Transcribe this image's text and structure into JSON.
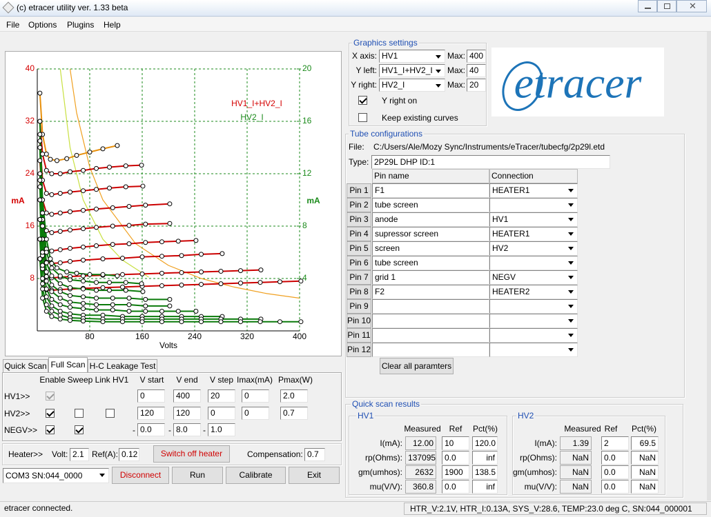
{
  "window": {
    "title": "(c) etracer utility ver. 1.33 beta"
  },
  "menu": [
    "File",
    "Options",
    "Plugins",
    "Help"
  ],
  "chart_data": {
    "type": "line",
    "xlabel": "Volts",
    "ylabel": "mA",
    "y2label": "mA",
    "xlim": [
      0,
      400
    ],
    "xticks": [
      80,
      160,
      240,
      320,
      400
    ],
    "ylim": [
      0,
      40
    ],
    "yticks": [
      8,
      16,
      24,
      32,
      40
    ],
    "y2lim": [
      0,
      20
    ],
    "y2ticks": [
      4,
      8,
      12,
      16,
      20
    ],
    "grid": true,
    "legend": [
      {
        "label": "HV1_I+HV2_I",
        "color": "#d40000"
      },
      {
        "label": "HV2_I",
        "color": "#1a8a1a"
      }
    ],
    "series": [
      {
        "color": "#f0a020",
        "markers": false,
        "x": [
          50,
          60,
          80,
          100,
          150,
          200,
          250,
          300,
          350,
          400
        ],
        "values": [
          40,
          33.3,
          25,
          20,
          13.3,
          10,
          8,
          6.7,
          5.7,
          5
        ]
      },
      {
        "color": "#c8e040",
        "markers": false,
        "axis": "y2",
        "x": [
          35,
          50,
          70,
          100,
          130,
          170
        ],
        "values": [
          20,
          14,
          10,
          7,
          5.4,
          4.1
        ]
      },
      {
        "color": "#e8900c",
        "markers": true,
        "x": [
          4,
          8,
          14,
          20,
          30,
          45,
          60,
          80,
          100,
          122
        ],
        "values": [
          36.3,
          30,
          27,
          26.2,
          26,
          26.3,
          26.8,
          27.3,
          27.8,
          28.3
        ]
      },
      {
        "color": "#cc0000",
        "markers": true,
        "x": [
          4,
          8,
          14,
          22,
          35,
          50,
          70,
          90,
          110,
          135,
          159
        ],
        "values": [
          32,
          27,
          24.5,
          24,
          24,
          24.3,
          24.5,
          24.8,
          25,
          25.2,
          25.3
        ]
      },
      {
        "color": "#cc0000",
        "markers": true,
        "x": [
          4,
          8,
          14,
          22,
          35,
          50,
          70,
          90,
          110,
          135,
          161
        ],
        "values": [
          29,
          23,
          21,
          20.8,
          21,
          21.2,
          21.4,
          21.6,
          21.8,
          22,
          22.1
        ]
      },
      {
        "color": "#cc0000",
        "markers": true,
        "x": [
          4,
          8,
          14,
          22,
          35,
          50,
          70,
          90,
          115,
          140,
          165,
          202
        ],
        "values": [
          26,
          20,
          18,
          17.8,
          18,
          18.2,
          18.4,
          18.6,
          18.8,
          19,
          19.2,
          19.4
        ]
      },
      {
        "color": "#cc0000",
        "markers": true,
        "x": [
          4,
          8,
          14,
          22,
          35,
          50,
          70,
          90,
          115,
          140,
          165,
          202
        ],
        "values": [
          23,
          17,
          15.3,
          15,
          15.2,
          15.4,
          15.6,
          15.8,
          16,
          16.1,
          16.3,
          16.4
        ]
      },
      {
        "color": "#cc0000",
        "markers": true,
        "x": [
          4,
          8,
          14,
          22,
          35,
          50,
          70,
          90,
          115,
          140,
          165,
          190,
          215,
          242
        ],
        "values": [
          20,
          14,
          12.5,
          12.2,
          12.4,
          12.6,
          12.8,
          13,
          13.2,
          13.3,
          13.5,
          13.6,
          13.7,
          13.8
        ]
      },
      {
        "color": "#cc0000",
        "markers": true,
        "x": [
          4,
          8,
          14,
          22,
          35,
          50,
          70,
          100,
          130,
          160,
          190,
          220,
          250,
          282
        ],
        "values": [
          17,
          11.5,
          10.5,
          10.3,
          10.4,
          10.6,
          10.8,
          11,
          11.1,
          11.3,
          11.4,
          11.5,
          11.7,
          11.8
        ]
      },
      {
        "color": "#cc0000",
        "markers": true,
        "x": [
          4,
          8,
          14,
          22,
          35,
          50,
          70,
          100,
          130,
          160,
          190,
          220,
          250,
          280,
          310,
          341
        ],
        "values": [
          14,
          9.5,
          8.3,
          8.1,
          8.2,
          8.3,
          8.4,
          8.5,
          8.6,
          8.7,
          8.8,
          8.9,
          9,
          9.1,
          9.2,
          9.3
        ]
      },
      {
        "color": "#cc0000",
        "markers": true,
        "x": [
          4,
          8,
          14,
          22,
          35,
          50,
          70,
          100,
          130,
          160,
          190,
          220,
          250,
          280,
          310,
          340,
          370,
          402
        ],
        "values": [
          11,
          7.2,
          6.3,
          6.2,
          6.3,
          6.4,
          6.5,
          6.6,
          6.7,
          6.8,
          6.9,
          7,
          7.1,
          7.2,
          7.3,
          7.4,
          7.5,
          7.6
        ]
      },
      {
        "color": "#0a7a0a",
        "markers": true,
        "axis": "y2",
        "x": [
          4,
          8,
          14,
          20,
          30,
          45,
          60,
          80,
          100,
          122
        ],
        "values": [
          16,
          10,
          7,
          5.5,
          4.8,
          4.5,
          4.4,
          4.3,
          4.3,
          4.2
        ]
      },
      {
        "color": "#0a7a0a",
        "markers": true,
        "axis": "y2",
        "x": [
          4,
          8,
          14,
          22,
          35,
          50,
          70,
          90,
          110,
          135,
          159
        ],
        "values": [
          15,
          9,
          6,
          4.8,
          4.2,
          3.9,
          3.8,
          3.7,
          3.7,
          3.7,
          3.6
        ]
      },
      {
        "color": "#0a7a0a",
        "markers": true,
        "axis": "y2",
        "x": [
          4,
          8,
          14,
          22,
          35,
          50,
          70,
          90,
          110,
          135,
          161
        ],
        "values": [
          14,
          8,
          5.2,
          4.2,
          3.6,
          3.3,
          3.2,
          3.1,
          3.1,
          3.1,
          3.0
        ]
      },
      {
        "color": "#0a7a0a",
        "markers": true,
        "axis": "y2",
        "x": [
          4,
          8,
          14,
          22,
          35,
          50,
          70,
          90,
          115,
          140,
          165,
          202
        ],
        "values": [
          12,
          7,
          4.5,
          3.5,
          3,
          2.7,
          2.6,
          2.5,
          2.5,
          2.5,
          2.4,
          2.4
        ]
      },
      {
        "color": "#0a7a0a",
        "markers": true,
        "axis": "y2",
        "x": [
          4,
          8,
          14,
          22,
          35,
          50,
          70,
          90,
          115,
          140,
          165,
          202
        ],
        "values": [
          11,
          6,
          3.8,
          3,
          2.5,
          2.2,
          2.1,
          2.0,
          2.0,
          2.0,
          1.9,
          1.9
        ]
      },
      {
        "color": "#0a7a0a",
        "markers": true,
        "axis": "y2",
        "x": [
          4,
          8,
          14,
          22,
          35,
          50,
          70,
          90,
          115,
          140,
          165,
          190,
          215,
          242
        ],
        "values": [
          10,
          5,
          3.2,
          2.4,
          2,
          1.8,
          1.7,
          1.6,
          1.6,
          1.5,
          1.5,
          1.5,
          1.5,
          1.5
        ]
      },
      {
        "color": "#0a7a0a",
        "markers": true,
        "axis": "y2",
        "x": [
          4,
          8,
          14,
          22,
          35,
          50,
          70,
          100,
          130,
          160,
          190,
          220,
          250,
          282
        ],
        "values": [
          8.5,
          4,
          2.6,
          1.9,
          1.5,
          1.3,
          1.2,
          1.2,
          1.1,
          1.1,
          1.1,
          1.1,
          1.1,
          1.1
        ]
      },
      {
        "color": "#0a7a0a",
        "markers": true,
        "axis": "y2",
        "x": [
          4,
          8,
          14,
          22,
          35,
          50,
          70,
          100,
          130,
          160,
          190,
          220,
          250,
          280,
          310,
          341
        ],
        "values": [
          7,
          3.2,
          2,
          1.5,
          1.2,
          1.0,
          0.95,
          0.9,
          0.9,
          0.9,
          0.9,
          0.9,
          0.9,
          0.9,
          0.9,
          0.9
        ]
      },
      {
        "color": "#0a7a0a",
        "markers": true,
        "axis": "y2",
        "x": [
          4,
          8,
          14,
          22,
          35,
          50,
          70,
          100,
          130,
          160,
          190,
          220,
          250,
          280,
          310,
          340,
          370,
          402
        ],
        "values": [
          5.5,
          2.5,
          1.5,
          1.1,
          0.9,
          0.8,
          0.75,
          0.7,
          0.7,
          0.7,
          0.7,
          0.7,
          0.7,
          0.7,
          0.7,
          0.7,
          0.7,
          0.7
        ]
      }
    ]
  },
  "graphics": {
    "title": "Graphics settings",
    "rows": [
      {
        "label": "X axis:",
        "value": "HV1",
        "max_label": "Max:",
        "max": "400"
      },
      {
        "label": "Y left:",
        "value": "HV1_I+HV2_I",
        "max_label": "Max:",
        "max": "40"
      },
      {
        "label": "Y right:",
        "value": "HV2_I",
        "max_label": "Max:",
        "max": "20"
      }
    ],
    "checks": [
      {
        "label": "Y right on",
        "checked": true
      },
      {
        "label": "Keep existing curves",
        "checked": false
      }
    ],
    "logo": "etracer"
  },
  "tube": {
    "title": "Tube configurations",
    "file_label": "File:",
    "file": "C:/Users/Ale/Mozy Sync/Instruments/eTracer/tubecfg/2p29l.etd",
    "type_label": "Type:",
    "type": "2P29L DHP  ID:1",
    "headers": [
      "Pin name",
      "Connection"
    ],
    "pins": [
      {
        "pin": "Pin 1",
        "name": "F1",
        "connection": "HEATER1"
      },
      {
        "pin": "Pin 2",
        "name": "tube screen",
        "connection": null
      },
      {
        "pin": "Pin 3",
        "name": "anode",
        "connection": "HV1"
      },
      {
        "pin": "Pin 4",
        "name": "supressor screen",
        "connection": "HEATER1"
      },
      {
        "pin": "Pin 5",
        "name": "screen",
        "connection": "HV2"
      },
      {
        "pin": "Pin 6",
        "name": "tube screen",
        "connection": null
      },
      {
        "pin": "Pin 7",
        "name": "grid 1",
        "connection": "NEGV"
      },
      {
        "pin": "Pin 8",
        "name": "F2",
        "connection": "HEATER2"
      },
      {
        "pin": "Pin 9",
        "name": null,
        "connection": null
      },
      {
        "pin": "Pin 10",
        "name": null,
        "connection": null
      },
      {
        "pin": "Pin 11",
        "name": null,
        "connection": null
      },
      {
        "pin": "Pin 12",
        "name": null,
        "connection": null
      }
    ],
    "clear_button": "Clear all paramters"
  },
  "tabs": {
    "items": [
      "Quick Scan",
      "Full Scan",
      "H-C Leakage Test"
    ],
    "active": 1
  },
  "scan": {
    "headers": [
      "Enable",
      "Sweep",
      "Link HV1",
      "V start",
      "V end",
      "V step",
      "Imax(mA)",
      "Pmax(W)"
    ],
    "rows": [
      {
        "label": "HV1>>",
        "enable": true,
        "locked": true,
        "sweep": null,
        "link": null,
        "sign": null,
        "v_start": "0",
        "v_end": "400",
        "v_step": "20",
        "imax": "0",
        "pmax": "2.0"
      },
      {
        "label": "HV2>>",
        "enable": true,
        "locked": false,
        "sweep": false,
        "link": false,
        "sign": null,
        "v_start": "120",
        "v_end": "120",
        "v_step": "0",
        "imax": "0",
        "pmax": "0.7"
      },
      {
        "label": "NEGV>>",
        "enable": true,
        "locked": false,
        "sweep": true,
        "link": null,
        "sign": "-",
        "v_start": "0.0",
        "v_end": "8.0",
        "v_step": "1.0",
        "imax": null,
        "pmax": null
      }
    ]
  },
  "heater": {
    "label": "Heater>>",
    "volt_label": "Volt:",
    "volt": "2.1",
    "ref_label": "Ref(A):",
    "ref": "0.12",
    "switch_button": "Switch off heater",
    "comp_label": "Compensation:",
    "comp": "0.7"
  },
  "controls": {
    "port": "COM3 SN:044_0000",
    "buttons": [
      "Disconnect",
      "Run",
      "Calibrate",
      "Exit"
    ]
  },
  "results": {
    "title": "Quick scan results",
    "headers": [
      "Measured",
      "Ref",
      "Pct(%)"
    ],
    "row_labels": [
      "I(mA):",
      "rp(Ohms):",
      "gm(umhos):",
      "mu(V/V):"
    ],
    "groups": [
      {
        "name": "HV1",
        "rows": [
          [
            "12.00",
            "10",
            "120.0"
          ],
          [
            "137095",
            "0.0",
            "inf"
          ],
          [
            "2632",
            "1900",
            "138.5"
          ],
          [
            "360.8",
            "0.0",
            "inf"
          ]
        ]
      },
      {
        "name": "HV2",
        "rows": [
          [
            "1.39",
            "2",
            "69.5"
          ],
          [
            "NaN",
            "0.0",
            "NaN"
          ],
          [
            "NaN",
            "0.0",
            "NaN"
          ],
          [
            "NaN",
            "0.0",
            "NaN"
          ]
        ]
      }
    ]
  },
  "status": {
    "message": "etracer connected.",
    "info": "HTR_V:2.1V, HTR_I:0.13A, SYS_V:28.6, TEMP:23.0 deg C, SN:044_000001"
  }
}
